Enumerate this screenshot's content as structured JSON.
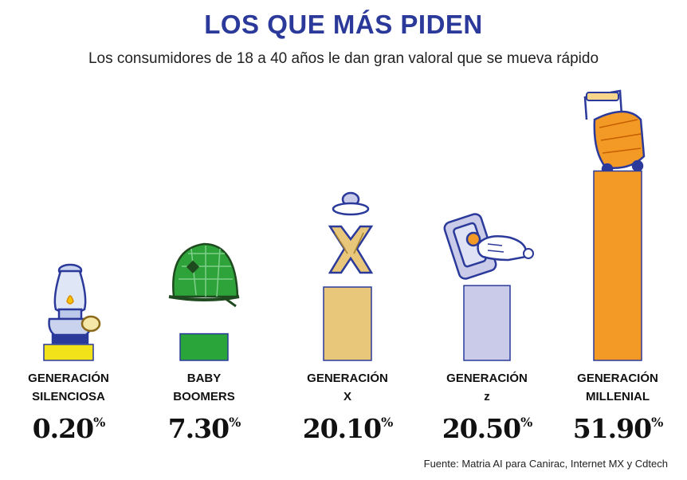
{
  "header": {
    "title": "LOS QUE MÁS PIDEN",
    "subtitle": "Los consumidores de 18 a 40 años le dan gran valoral que se mueva rápido"
  },
  "chart_data": {
    "type": "bar",
    "categories": [
      "GENERACIÓN SILENCIOSA",
      "BABY BOOMERS",
      "GENERACIÓN X",
      "GENERACIÓN z",
      "GENERACIÓN MILLENIAL"
    ],
    "category_lines": [
      [
        "GENERACIÓN",
        "SILENCIOSA"
      ],
      [
        "BABY",
        "BOOMERS"
      ],
      [
        "GENERACIÓN",
        "X"
      ],
      [
        "GENERACIÓN",
        "z"
      ],
      [
        "GENERACIÓN",
        "MILLENIAL"
      ]
    ],
    "values": [
      0.2,
      7.3,
      20.1,
      20.5,
      51.9
    ],
    "value_labels": [
      "0.20",
      "7.30",
      "20.10",
      "20.50",
      "51.90"
    ],
    "unit": "%",
    "colors": [
      "#f2e21a",
      "#2aa53a",
      "#e8c67a",
      "#c9cbe8",
      "#f39a26"
    ],
    "icons": [
      "oil-lamp-icon",
      "army-helmet-icon",
      "walkman-x-icon",
      "smartphone-hand-icon",
      "suitcase-icon"
    ],
    "ylim": [
      0,
      52
    ],
    "grid": false,
    "legend": "none"
  },
  "footer": {
    "source": "Fuente: Matria AI para Canirac, Internet MX y Cdtech"
  }
}
